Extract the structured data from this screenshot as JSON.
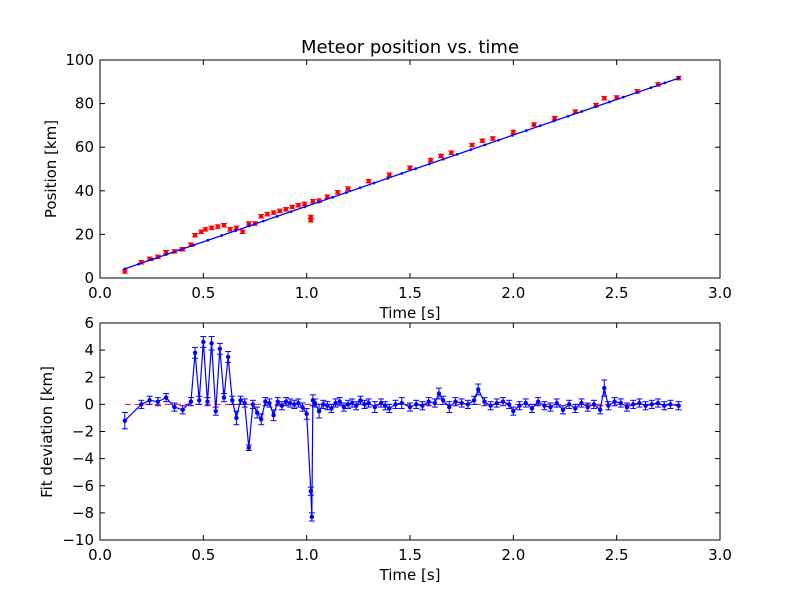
{
  "chart_data": [
    {
      "type": "scatter",
      "title": "Meteor position vs. time",
      "xlabel": "Time [s]",
      "ylabel": "Position [km]",
      "xlim": [
        0.0,
        3.0
      ],
      "ylim": [
        0,
        100
      ],
      "xticks": [
        "0.0",
        "0.5",
        "1.0",
        "1.5",
        "2.0",
        "2.5",
        "3.0"
      ],
      "yticks": [
        "0",
        "20",
        "40",
        "60",
        "80",
        "100"
      ],
      "grid": false,
      "colors": {
        "observed": "#ff0000",
        "fit": "#0000ff"
      },
      "series": [
        {
          "kind": "observed-points-with-errorbars",
          "x": [
            0.12,
            0.2,
            0.24,
            0.28,
            0.32,
            0.36,
            0.4,
            0.44,
            0.46,
            0.49,
            0.51,
            0.54,
            0.57,
            0.6,
            0.63,
            0.66,
            0.69,
            0.72,
            0.75,
            0.78,
            0.81,
            0.84,
            0.87,
            0.9,
            0.93,
            0.96,
            0.99,
            1.02,
            1.02,
            1.03,
            1.06,
            1.1,
            1.15,
            1.2,
            1.3,
            1.4,
            1.5,
            1.6,
            1.65,
            1.7,
            1.8,
            1.85,
            1.9,
            2.0,
            2.1,
            2.2,
            2.3,
            2.4,
            2.44,
            2.5,
            2.6,
            2.7,
            2.8
          ],
          "y": [
            3.0,
            7.2,
            8.8,
            9.7,
            11.8,
            12.2,
            13.2,
            15.3,
            19.6,
            21.2,
            22.3,
            23.0,
            23.6,
            24.2,
            22.3,
            23.0,
            21.2,
            25.0,
            25.0,
            28.3,
            29.3,
            30.0,
            30.8,
            31.5,
            32.6,
            33.4,
            34.0,
            28.0,
            26.5,
            35.2,
            35.5,
            37.3,
            39.3,
            41.0,
            44.4,
            47.4,
            50.6,
            54.1,
            56.0,
            57.5,
            61.0,
            63.0,
            64.0,
            67.0,
            70.4,
            73.3,
            76.3,
            79.3,
            82.5,
            82.8,
            85.6,
            88.8,
            91.7
          ],
          "err": 0.8
        },
        {
          "kind": "linear-fit",
          "x": [
            0.12,
            2.8
          ],
          "y": [
            4.2,
            91.7
          ]
        }
      ]
    },
    {
      "type": "line",
      "title": "",
      "xlabel": "Time [s]",
      "ylabel": "Fit deviation [km]",
      "xlim": [
        0.0,
        3.0
      ],
      "ylim": [
        -10,
        6
      ],
      "xticks": [
        "0.0",
        "0.5",
        "1.0",
        "1.5",
        "2.0",
        "2.5",
        "3.0"
      ],
      "yticks": [
        "−10",
        "−8",
        "−6",
        "−4",
        "−2",
        "0",
        "2",
        "4",
        "6"
      ],
      "grid": false,
      "colors": {
        "deviation": "#0000ff",
        "zero_line": "#ff0000"
      },
      "zero_reference": {
        "y": 0,
        "style": "dashed"
      },
      "series": [
        {
          "kind": "deviation-with-errorbars",
          "x": [
            0.12,
            0.2,
            0.24,
            0.28,
            0.32,
            0.36,
            0.4,
            0.44,
            0.46,
            0.48,
            0.5,
            0.52,
            0.54,
            0.56,
            0.58,
            0.6,
            0.62,
            0.64,
            0.66,
            0.68,
            0.7,
            0.72,
            0.74,
            0.76,
            0.78,
            0.8,
            0.82,
            0.84,
            0.86,
            0.88,
            0.9,
            0.92,
            0.94,
            0.96,
            0.98,
            1.0,
            1.02,
            1.025,
            1.03,
            1.04,
            1.06,
            1.08,
            1.1,
            1.12,
            1.14,
            1.16,
            1.18,
            1.2,
            1.22,
            1.24,
            1.26,
            1.28,
            1.3,
            1.33,
            1.36,
            1.38,
            1.4,
            1.43,
            1.46,
            1.5,
            1.53,
            1.56,
            1.59,
            1.62,
            1.64,
            1.66,
            1.69,
            1.72,
            1.75,
            1.78,
            1.81,
            1.83,
            1.86,
            1.89,
            1.92,
            1.95,
            1.98,
            2.0,
            2.03,
            2.06,
            2.09,
            2.12,
            2.15,
            2.18,
            2.21,
            2.24,
            2.27,
            2.3,
            2.33,
            2.36,
            2.39,
            2.42,
            2.44,
            2.46,
            2.49,
            2.52,
            2.55,
            2.58,
            2.61,
            2.64,
            2.67,
            2.7,
            2.73,
            2.76,
            2.8
          ],
          "y": [
            -1.2,
            0.0,
            0.3,
            0.2,
            0.5,
            -0.2,
            -0.4,
            0.2,
            3.8,
            0.3,
            4.6,
            0.2,
            4.5,
            -0.5,
            4.1,
            0.5,
            3.5,
            0.3,
            -1.0,
            0.3,
            0.1,
            -3.2,
            0.0,
            -0.6,
            -1.1,
            0.2,
            0.1,
            -0.8,
            0.2,
            -0.1,
            0.2,
            0.1,
            0.0,
            0.1,
            -0.2,
            -0.7,
            -6.4,
            -8.3,
            0.3,
            0.1,
            -0.5,
            0.0,
            -0.1,
            -0.3,
            0.1,
            0.2,
            -0.2,
            0.0,
            0.1,
            -0.1,
            0.3,
            0.0,
            0.1,
            -0.2,
            0.1,
            -0.1,
            -0.3,
            0.0,
            0.1,
            -0.2,
            0.0,
            -0.1,
            0.2,
            0.1,
            0.8,
            0.3,
            -0.2,
            0.2,
            0.1,
            0.0,
            0.3,
            1.1,
            0.2,
            -0.1,
            0.1,
            0.2,
            0.0,
            -0.5,
            -0.1,
            0.1,
            -0.3,
            0.2,
            -0.1,
            -0.2,
            0.1,
            -0.4,
            0.0,
            -0.3,
            0.1,
            -0.2,
            0.0,
            -0.4,
            1.2,
            -0.1,
            0.2,
            0.1,
            -0.2,
            0.0,
            0.1,
            -0.1,
            0.0,
            0.1,
            -0.1,
            0.0,
            -0.1
          ],
          "err": [
            0.6,
            0.3,
            0.3,
            0.3,
            0.3,
            0.3,
            0.3,
            0.3,
            0.4,
            0.3,
            0.4,
            0.3,
            0.5,
            0.3,
            0.4,
            0.3,
            0.4,
            0.3,
            0.5,
            0.3,
            0.3,
            0.2,
            0.3,
            0.4,
            0.4,
            0.3,
            0.3,
            0.4,
            0.3,
            0.3,
            0.3,
            0.3,
            0.3,
            0.3,
            0.3,
            0.4,
            0.3,
            0.3,
            0.4,
            0.3,
            0.5,
            0.3,
            0.3,
            0.3,
            0.3,
            0.3,
            0.3,
            0.3,
            0.3,
            0.3,
            0.3,
            0.3,
            0.3,
            0.4,
            0.3,
            0.3,
            0.3,
            0.3,
            0.4,
            0.3,
            0.3,
            0.3,
            0.3,
            0.3,
            0.4,
            0.3,
            0.4,
            0.3,
            0.3,
            0.3,
            0.3,
            0.4,
            0.3,
            0.3,
            0.3,
            0.3,
            0.3,
            0.3,
            0.3,
            0.3,
            0.3,
            0.3,
            0.3,
            0.3,
            0.3,
            0.3,
            0.3,
            0.3,
            0.3,
            0.3,
            0.3,
            0.3,
            0.6,
            0.3,
            0.3,
            0.3,
            0.3,
            0.3,
            0.3,
            0.3,
            0.3,
            0.3,
            0.3,
            0.3,
            0.3
          ]
        }
      ]
    }
  ]
}
